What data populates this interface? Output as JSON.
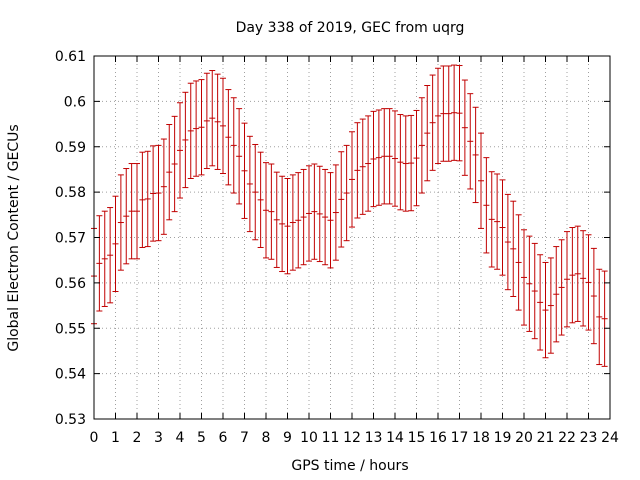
{
  "chart_data": {
    "type": "line",
    "title": "Day 338 of 2019, GEC from uqrg",
    "xlabel": "GPS time / hours",
    "ylabel": "Global Electron Content / GECUs",
    "xlim": [
      0,
      24
    ],
    "ylim": [
      0.53,
      0.61
    ],
    "x_ticks": [
      "0",
      "1",
      "2",
      "3",
      "4",
      "5",
      "6",
      "7",
      "8",
      "9",
      "10",
      "11",
      "12",
      "13",
      "14",
      "15",
      "16",
      "17",
      "18",
      "19",
      "20",
      "21",
      "22",
      "23",
      "24"
    ],
    "y_ticks": [
      "0.53",
      "0.54",
      "0.55",
      "0.56",
      "0.57",
      "0.58",
      "0.59",
      "0.6",
      "0.61"
    ],
    "grid": true,
    "series_color": "#c00000",
    "error": 0.0105,
    "x": [
      0,
      0.25,
      0.5,
      0.75,
      1,
      1.25,
      1.5,
      1.75,
      2,
      2.25,
      2.5,
      2.75,
      3,
      3.25,
      3.5,
      3.75,
      4,
      4.25,
      4.5,
      4.75,
      5,
      5.25,
      5.5,
      5.75,
      6,
      6.25,
      6.5,
      6.75,
      7,
      7.25,
      7.5,
      7.75,
      8,
      8.25,
      8.5,
      8.75,
      9,
      9.25,
      9.5,
      9.75,
      10,
      10.25,
      10.5,
      10.75,
      11,
      11.25,
      11.5,
      11.75,
      12,
      12.25,
      12.5,
      12.75,
      13,
      13.25,
      13.5,
      13.75,
      14,
      14.25,
      14.5,
      14.75,
      15,
      15.25,
      15.5,
      15.75,
      16,
      16.25,
      16.5,
      16.75,
      17,
      17.25,
      17.5,
      17.75,
      18,
      18.25,
      18.5,
      18.75,
      19,
      19.25,
      19.5,
      19.75,
      20,
      20.25,
      20.5,
      20.75,
      21,
      21.25,
      21.5,
      21.75,
      22,
      22.25,
      22.5,
      22.75,
      23,
      23.25,
      23.5,
      23.75
    ],
    "y": [
      0.5615,
      0.5643,
      0.5653,
      0.5661,
      0.5686,
      0.5733,
      0.5747,
      0.5758,
      0.5758,
      0.5783,
      0.5785,
      0.5797,
      0.5798,
      0.5812,
      0.5844,
      0.5862,
      0.5892,
      0.5915,
      0.5935,
      0.594,
      0.5943,
      0.5957,
      0.5963,
      0.5955,
      0.5946,
      0.5921,
      0.5903,
      0.5879,
      0.5847,
      0.5818,
      0.58,
      0.5783,
      0.576,
      0.5757,
      0.5739,
      0.573,
      0.5725,
      0.5733,
      0.5738,
      0.5745,
      0.5753,
      0.5757,
      0.5752,
      0.5745,
      0.5738,
      0.5755,
      0.5784,
      0.5798,
      0.5828,
      0.5848,
      0.5856,
      0.5863,
      0.5873,
      0.5876,
      0.5879,
      0.5879,
      0.5874,
      0.5866,
      0.5863,
      0.5864,
      0.5875,
      0.5903,
      0.593,
      0.5953,
      0.5968,
      0.5973,
      0.5973,
      0.5975,
      0.5974,
      0.5942,
      0.5912,
      0.5882,
      0.5825,
      0.5771,
      0.574,
      0.5735,
      0.5722,
      0.569,
      0.5675,
      0.5645,
      0.5612,
      0.5598,
      0.5582,
      0.5557,
      0.554,
      0.555,
      0.5575,
      0.559,
      0.5608,
      0.5617,
      0.562,
      0.561,
      0.5601,
      0.5571,
      0.5525,
      0.5521
    ]
  }
}
